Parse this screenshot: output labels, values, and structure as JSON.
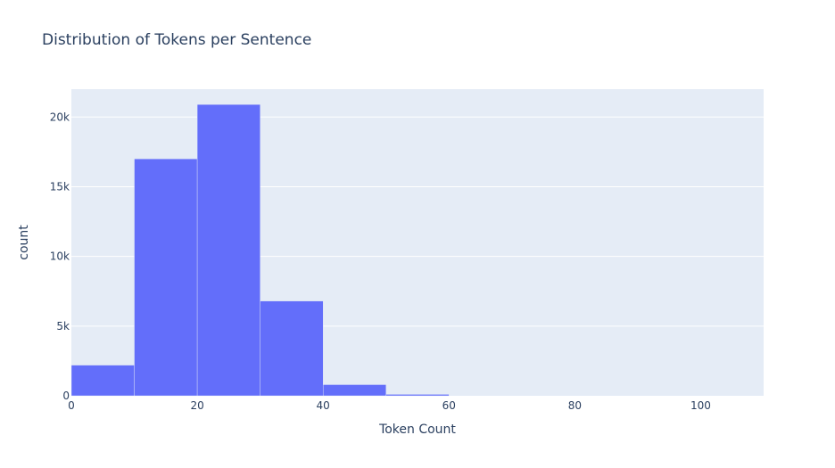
{
  "chart_data": {
    "type": "bar",
    "title": "Distribution of Tokens per Sentence",
    "xlabel": "Token Count",
    "ylabel": "count",
    "xlim": [
      0,
      110
    ],
    "ylim": [
      0,
      22000
    ],
    "bin_width": 10,
    "bins": [
      {
        "x0": 0,
        "x1": 10,
        "count": 2200
      },
      {
        "x0": 10,
        "x1": 20,
        "count": 17000
      },
      {
        "x0": 20,
        "x1": 30,
        "count": 20900
      },
      {
        "x0": 30,
        "x1": 40,
        "count": 6800
      },
      {
        "x0": 40,
        "x1": 50,
        "count": 800
      },
      {
        "x0": 50,
        "x1": 60,
        "count": 100
      }
    ],
    "x_ticks": [
      {
        "value": 0,
        "label": "0"
      },
      {
        "value": 20,
        "label": "20"
      },
      {
        "value": 40,
        "label": "40"
      },
      {
        "value": 60,
        "label": "60"
      },
      {
        "value": 80,
        "label": "80"
      },
      {
        "value": 100,
        "label": "100"
      }
    ],
    "y_ticks": [
      {
        "value": 0,
        "label": "0"
      },
      {
        "value": 5000,
        "label": "5k"
      },
      {
        "value": 10000,
        "label": "10k"
      },
      {
        "value": 15000,
        "label": "15k"
      },
      {
        "value": 20000,
        "label": "20k"
      }
    ],
    "grid": true,
    "colors": {
      "bar": "#636efa",
      "plot_bg": "#e5ecf6",
      "grid": "#ffffff",
      "text": "#2a3f5f"
    }
  }
}
